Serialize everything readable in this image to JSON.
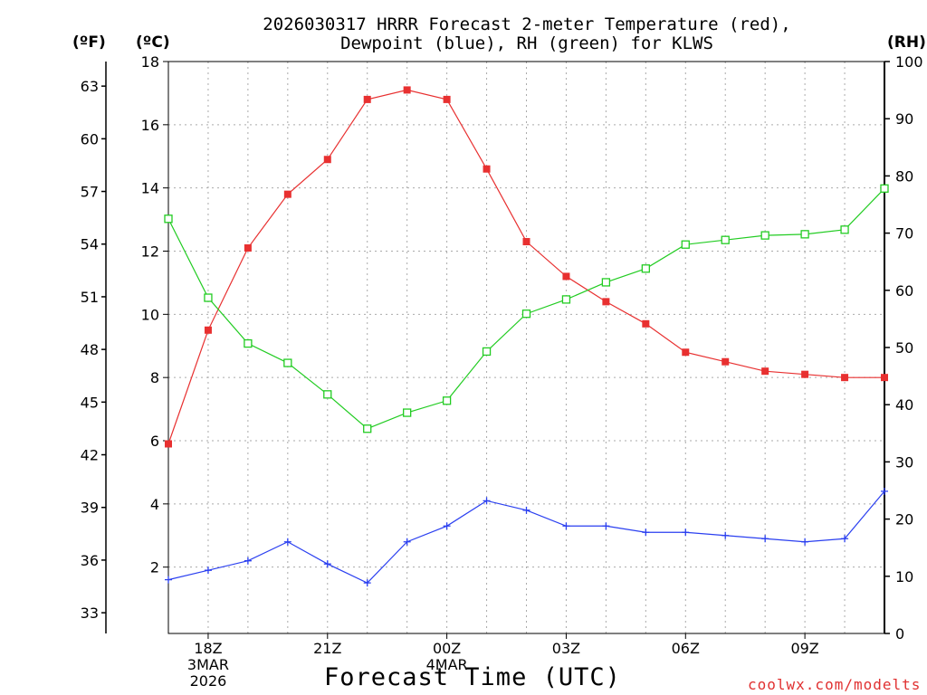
{
  "title_line1": "2026030317 HRRR Forecast 2-meter Temperature (red),",
  "title_line2": "Dewpoint (blue), RH (green) for KLWS",
  "unit_f": "(ºF)",
  "unit_c": "(ºC)",
  "unit_rh": "(RH)",
  "xaxis_title": "Forecast Time (UTC)",
  "credit": "coolwx.com/modelts",
  "colors": {
    "temperature": "#e83030",
    "dewpoint": "#2a3ff0",
    "rh": "#22cc22",
    "grid": "#aaaaaa"
  },
  "chart_data": {
    "type": "line",
    "title": "2026030317 HRRR Forecast 2-meter Temperature (red), Dewpoint (blue), RH (green) for KLWS",
    "xlabel": "Forecast Time (UTC)",
    "x_hours": [
      17,
      18,
      19,
      20,
      21,
      22,
      23,
      24,
      25,
      26,
      27,
      28,
      29,
      30,
      31,
      32,
      33,
      34,
      35
    ],
    "xlim": [
      17,
      35
    ],
    "x_ticks": [
      {
        "hour": 18,
        "lines": [
          "18Z",
          "3MAR",
          "2026"
        ]
      },
      {
        "hour": 21,
        "lines": [
          "21Z"
        ]
      },
      {
        "hour": 24,
        "lines": [
          "00Z",
          "4MAR"
        ]
      },
      {
        "hour": 27,
        "lines": [
          "03Z"
        ]
      },
      {
        "hour": 30,
        "lines": [
          "06Z"
        ]
      },
      {
        "hour": 33,
        "lines": [
          "09Z"
        ]
      }
    ],
    "y_left_celsius": {
      "label": "ºC",
      "ylim": [
        -0.1,
        18
      ],
      "ticks": [
        2,
        4,
        6,
        8,
        10,
        12,
        14,
        16,
        18
      ]
    },
    "y_left_fahrenheit": {
      "label": "ºF",
      "ticks": [
        33,
        36,
        39,
        42,
        45,
        48,
        51,
        54,
        57,
        60,
        63
      ]
    },
    "y_right_rh": {
      "label": "RH",
      "ylim": [
        0,
        100
      ],
      "ticks": [
        0,
        10,
        20,
        30,
        40,
        50,
        60,
        70,
        80,
        90,
        100
      ]
    },
    "series": [
      {
        "name": "Temperature",
        "axis": "celsius",
        "marker": "filled-square",
        "values": [
          5.9,
          9.5,
          12.1,
          13.8,
          14.9,
          16.8,
          17.1,
          16.8,
          14.6,
          12.3,
          11.2,
          10.4,
          9.7,
          8.8,
          8.5,
          8.2,
          8.1,
          8.0,
          8.0
        ]
      },
      {
        "name": "Dewpoint",
        "axis": "celsius",
        "marker": "plus",
        "values": [
          1.6,
          1.9,
          2.2,
          2.8,
          2.1,
          1.5,
          2.8,
          3.3,
          4.1,
          3.8,
          3.3,
          3.3,
          3.1,
          3.1,
          3.0,
          2.9,
          2.8,
          2.9,
          4.4
        ]
      },
      {
        "name": "RH",
        "axis": "rh",
        "marker": "open-square",
        "values": [
          72.5,
          58.7,
          50.7,
          47.3,
          41.8,
          35.8,
          38.6,
          40.7,
          49.3,
          55.9,
          58.4,
          61.4,
          63.8,
          68.0,
          68.8,
          69.6,
          69.8,
          70.6,
          77.8
        ]
      }
    ]
  }
}
